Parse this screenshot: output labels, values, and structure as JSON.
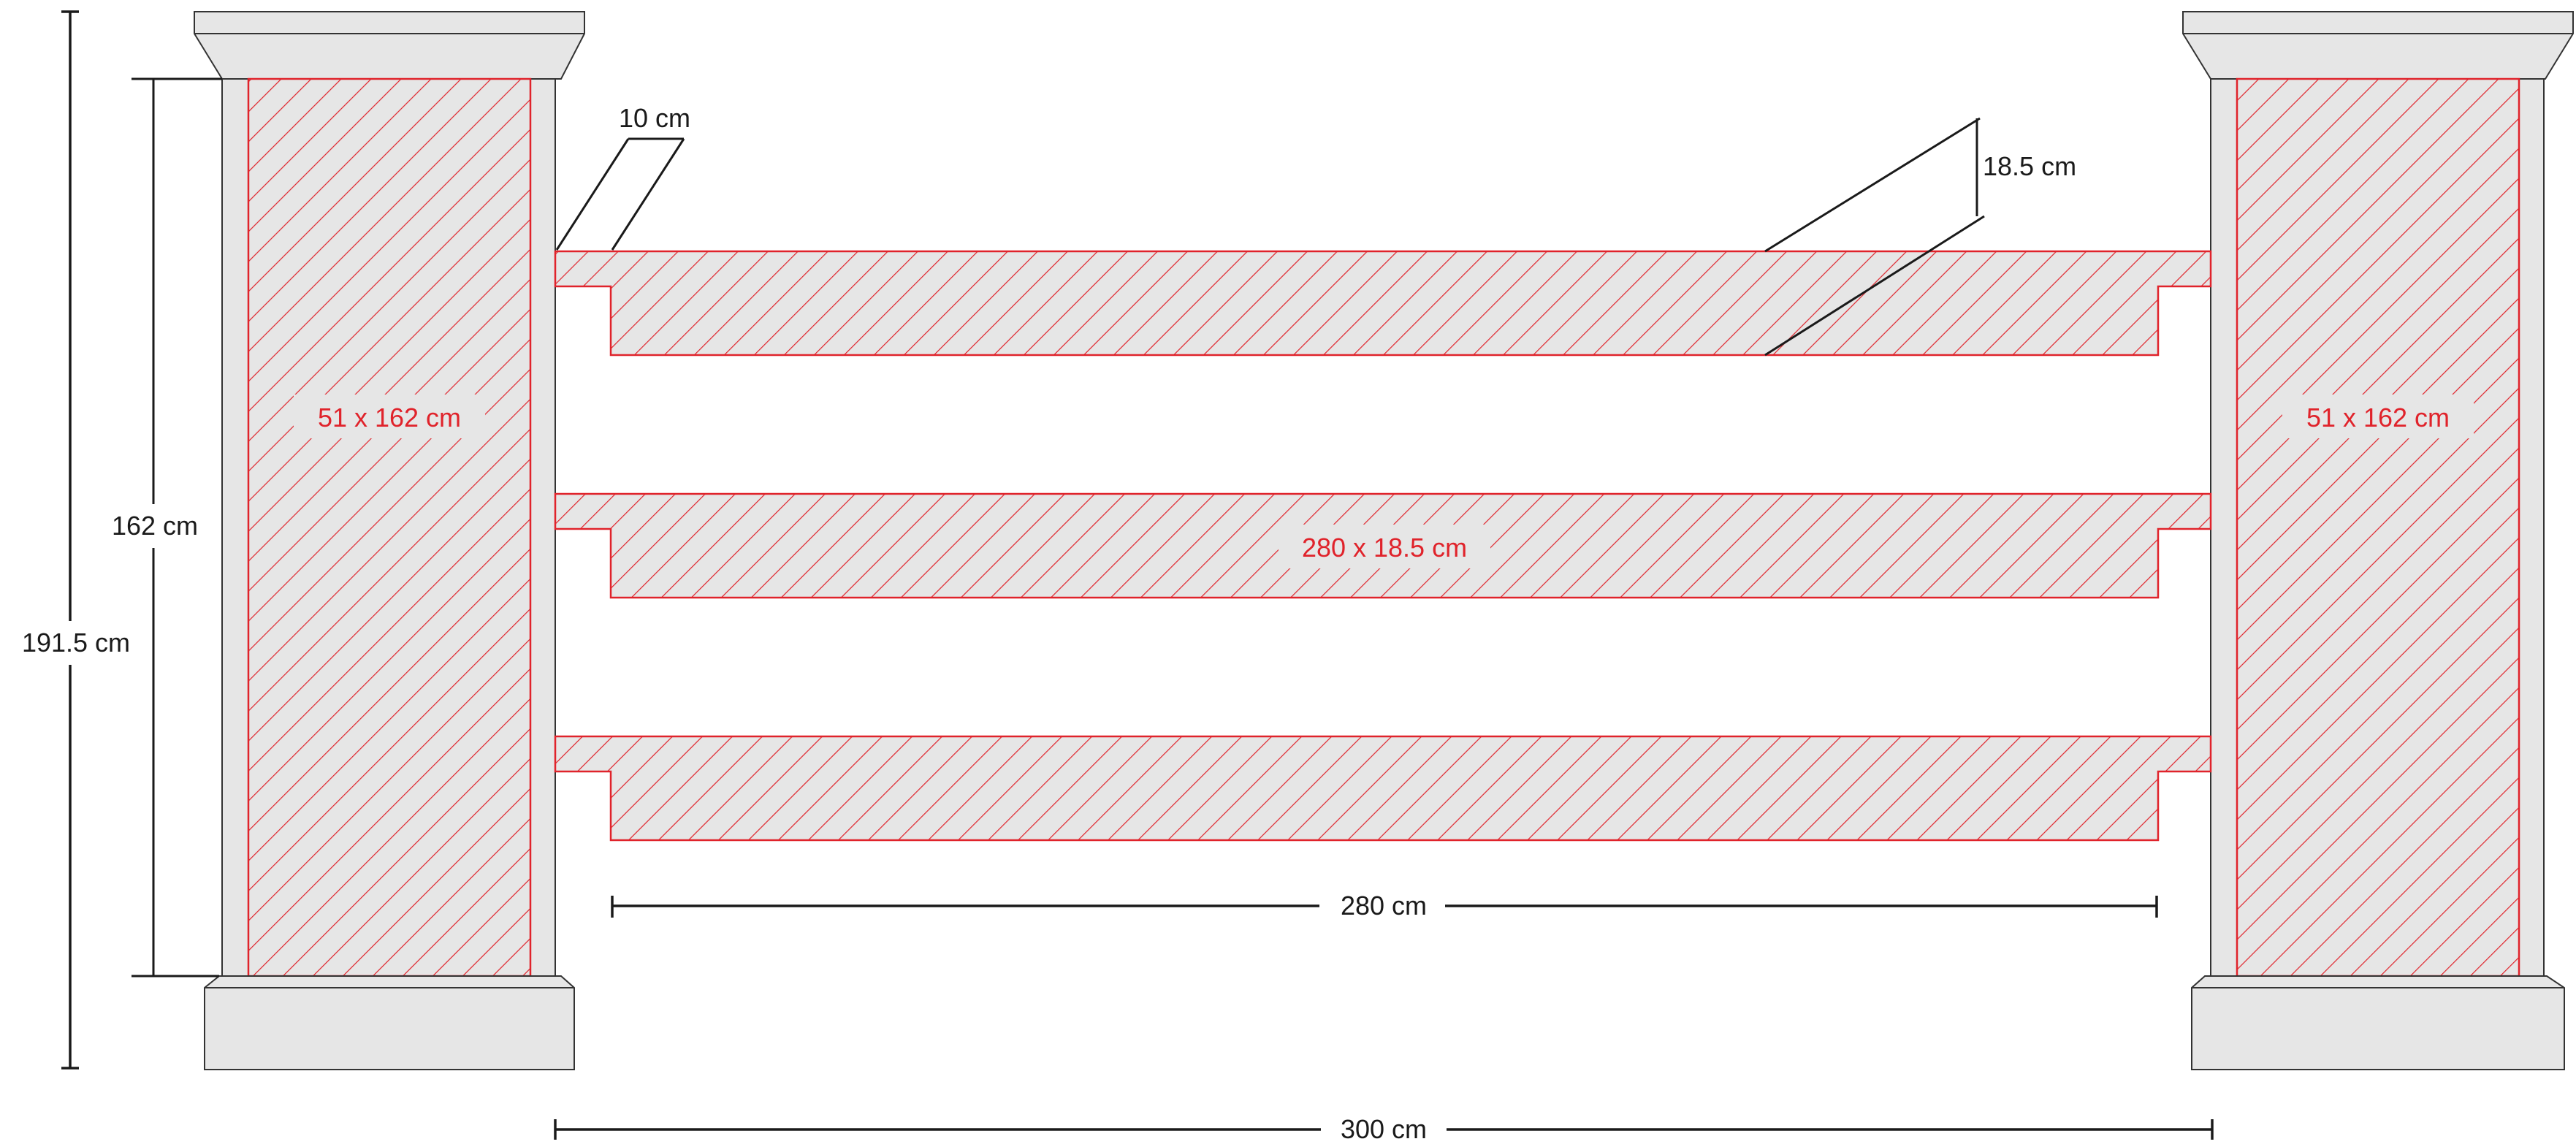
{
  "colors": {
    "hatch_red": "#e0232b",
    "concrete_gray": "#e6e6e6",
    "outline": "#333333",
    "dimension": "#1a1a1a"
  },
  "labels": {
    "pillar_left": "51 x 162 cm",
    "pillar_right": "51 x 162 cm",
    "board_middle": "280 x 18.5 cm"
  },
  "dimensions": {
    "total_height": "191.5 cm",
    "pillar_height": "162 cm",
    "groove_depth": "10 cm",
    "board_height": "18.5 cm",
    "board_length": "280 cm",
    "span": "300 cm"
  }
}
